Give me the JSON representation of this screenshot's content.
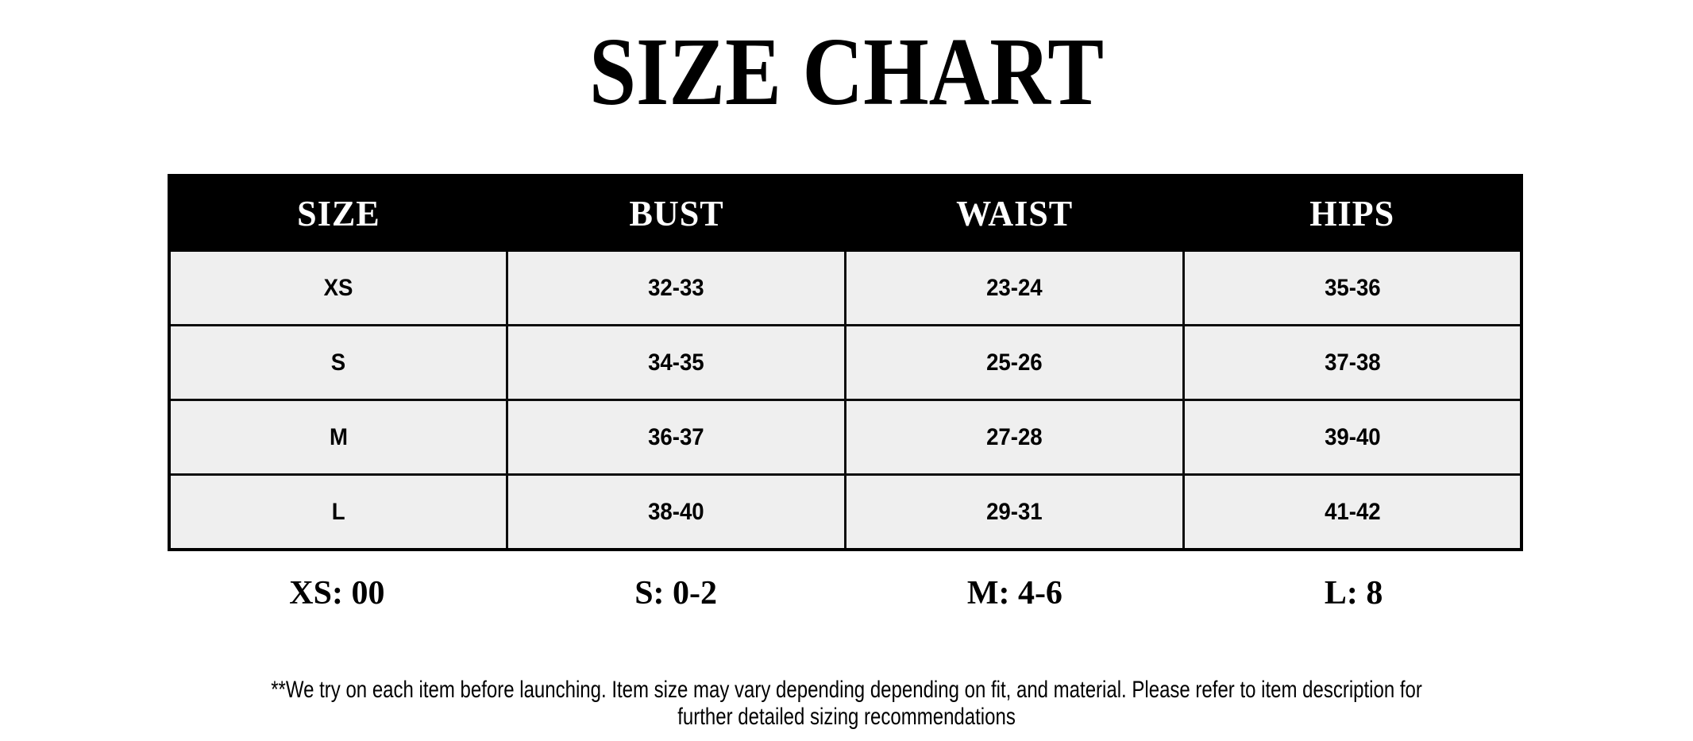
{
  "page": {
    "title": "SIZE CHART",
    "background_color": "#ffffff",
    "text_color": "#000000"
  },
  "size_chart_table": {
    "columns": [
      "SIZE",
      "BUST",
      "WAIST",
      "HIPS"
    ],
    "rows": [
      {
        "size": "XS",
        "bust": "32-33",
        "waist": "23-24",
        "hips": "35-36"
      },
      {
        "size": "S",
        "bust": "34-35",
        "waist": "25-26",
        "hips": "37-38"
      },
      {
        "size": "M",
        "bust": "36-37",
        "waist": "27-28",
        "hips": "39-40"
      },
      {
        "size": "L",
        "bust": "38-40",
        "waist": "29-31",
        "hips": "41-42"
      }
    ],
    "header_background": "#000000",
    "header_text_color": "#ffffff",
    "cell_background": "#efefef",
    "border_color": "#000000"
  },
  "numeric_size_equivalents": [
    "XS: 00",
    "S: 0-2",
    "M: 4-6",
    "L: 8"
  ],
  "footnote": {
    "line1": "**We try on each item before launching. Item size may vary depending depending on fit, and material. Please refer to item description for",
    "line2": "further detailed sizing recommendations"
  }
}
